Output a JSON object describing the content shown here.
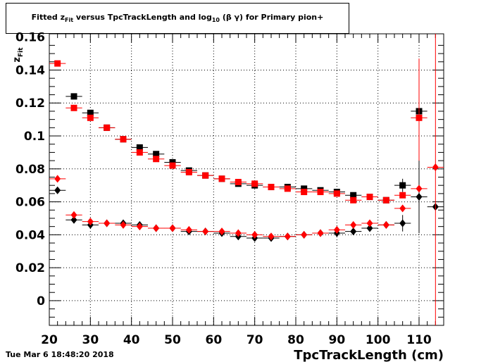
{
  "header": {
    "title_prefix": "Fitted  z",
    "title_sub1": "Fit",
    "title_mid": "  versus TpcTrackLength and log",
    "title_sub2": "10",
    "title_suffix": " (β γ) for Primary pion+"
  },
  "footer": {
    "date": "Tue Mar  6 18:48:20 2018"
  },
  "chart_data": {
    "type": "scatter",
    "xlabel": "TpcTrackLength (cm)",
    "ylabel": "z_Fit",
    "xlim": [
      20,
      116
    ],
    "ylim": [
      -0.015,
      0.162
    ],
    "x_ticks": [
      20,
      30,
      40,
      50,
      60,
      70,
      80,
      90,
      100,
      110
    ],
    "y_ticks": [
      0,
      0.02,
      0.04,
      0.06,
      0.08,
      0.1,
      0.12,
      0.14
    ],
    "y_tick_labels": [
      "0",
      "0.02",
      "0.04",
      "0.06",
      "0.08",
      "0.1",
      "0.12",
      "0.14"
    ],
    "partial_top_label": "0.16",
    "grid": true,
    "x_error": 2,
    "series": [
      {
        "marker": "square",
        "color": "#000000",
        "x": [
          26,
          30,
          34,
          38,
          42,
          46,
          50,
          54,
          58,
          62,
          66,
          70,
          74,
          78,
          82,
          86,
          90,
          94,
          98,
          102,
          106,
          110
        ],
        "y": [
          0.124,
          0.114,
          0.105,
          0.098,
          0.093,
          0.089,
          0.084,
          0.079,
          0.076,
          0.074,
          0.071,
          0.07,
          0.069,
          0.069,
          0.068,
          0.067,
          0.066,
          0.064,
          0.063,
          0.061,
          0.07,
          0.115
        ],
        "yerr": [
          0,
          0,
          0,
          0,
          0,
          0,
          0,
          0,
          0,
          0,
          0,
          0,
          0,
          0,
          0,
          0,
          0,
          0,
          0,
          0,
          0.004,
          0.03
        ]
      },
      {
        "marker": "square",
        "color": "#ff0000",
        "x": [
          22,
          26,
          30,
          34,
          38,
          42,
          46,
          50,
          54,
          58,
          62,
          66,
          70,
          74,
          78,
          82,
          86,
          90,
          94,
          98,
          102,
          106,
          110
        ],
        "y": [
          0.144,
          0.117,
          0.111,
          0.105,
          0.098,
          0.09,
          0.086,
          0.082,
          0.078,
          0.076,
          0.074,
          0.072,
          0.071,
          0.069,
          0.068,
          0.066,
          0.066,
          0.065,
          0.061,
          0.063,
          0.061,
          0.064,
          0.111
        ],
        "yerr": [
          0,
          0,
          0,
          0,
          0,
          0,
          0,
          0,
          0,
          0,
          0,
          0,
          0,
          0,
          0,
          0,
          0,
          0,
          0,
          0,
          0,
          0,
          0.036
        ]
      },
      {
        "marker": "diamond",
        "color": "#000000",
        "x": [
          22,
          26,
          30,
          34,
          38,
          42,
          46,
          50,
          54,
          58,
          62,
          66,
          70,
          74,
          78,
          82,
          86,
          90,
          94,
          98,
          102,
          106,
          110,
          114
        ],
        "y": [
          0.067,
          0.049,
          0.046,
          0.047,
          0.047,
          0.046,
          0.044,
          0.044,
          0.042,
          0.042,
          0.041,
          0.039,
          0.038,
          0.038,
          0.039,
          0.04,
          0.041,
          0.041,
          0.042,
          0.044,
          0.046,
          0.047,
          0.063,
          0.057
        ],
        "yerr": [
          0,
          0,
          0,
          0,
          0,
          0,
          0,
          0,
          0,
          0,
          0,
          0,
          0,
          0,
          0,
          0,
          0,
          0,
          0,
          0,
          0,
          0.005,
          0.022,
          0
        ]
      },
      {
        "marker": "diamond",
        "color": "#ff0000",
        "x": [
          22,
          26,
          30,
          34,
          38,
          42,
          46,
          50,
          54,
          58,
          62,
          66,
          70,
          74,
          78,
          82,
          86,
          90,
          94,
          98,
          102,
          106,
          110,
          114
        ],
        "y": [
          0.074,
          0.052,
          0.048,
          0.047,
          0.046,
          0.045,
          0.044,
          0.044,
          0.043,
          0.042,
          0.042,
          0.041,
          0.04,
          0.039,
          0.039,
          0.04,
          0.041,
          0.043,
          0.046,
          0.047,
          0.046,
          0.056,
          0.068,
          0.081
        ],
        "yerr": [
          0,
          0,
          0,
          0,
          0,
          0,
          0,
          0,
          0,
          0,
          0,
          0,
          0,
          0,
          0,
          0,
          0,
          0,
          0,
          0,
          0,
          0,
          0,
          0.1
        ]
      }
    ]
  }
}
